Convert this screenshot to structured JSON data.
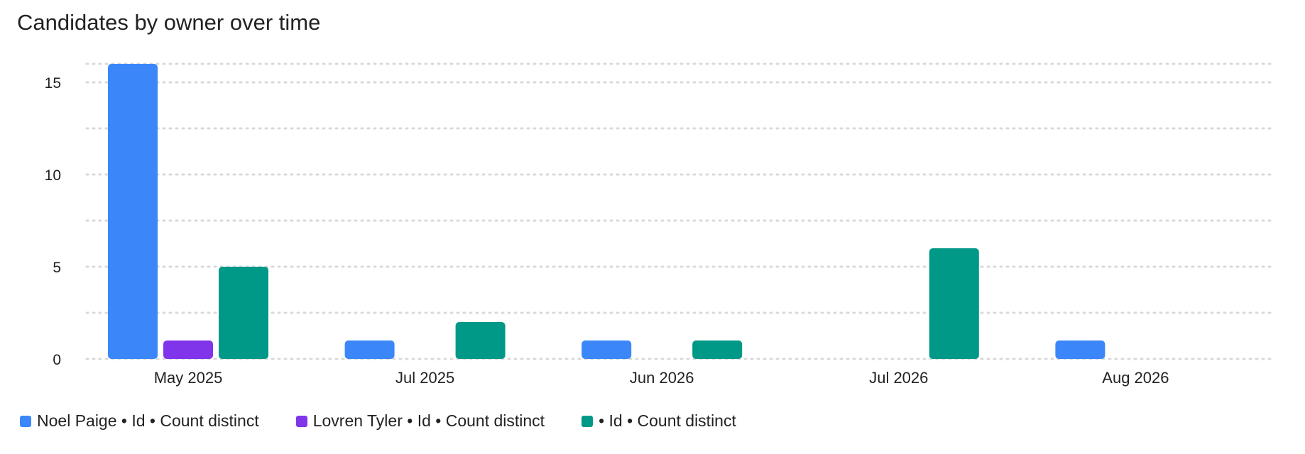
{
  "chart_data": {
    "type": "bar",
    "title": "Candidates by owner over time",
    "xlabel": "",
    "ylabel": "",
    "categories": [
      "May 2025",
      "Jul 2025",
      "Jun 2026",
      "Jul 2026",
      "Aug 2026"
    ],
    "ylim": [
      0,
      16
    ],
    "y_ticks": [
      0,
      5,
      10,
      15
    ],
    "grid": "horizontal dotted",
    "legend_position": "bottom-left",
    "series": [
      {
        "name": "Noel Paige • Id • Count distinct",
        "color": "#3b87fa",
        "values": [
          16,
          1,
          1,
          0,
          1
        ]
      },
      {
        "name": "Lovren Tyler • Id • Count distinct",
        "color": "#8035ea",
        "values": [
          1,
          0,
          0,
          0,
          0
        ]
      },
      {
        "name": "• Id • Count distinct",
        "color": "#009886",
        "values": [
          5,
          2,
          1,
          6,
          0
        ]
      }
    ]
  }
}
